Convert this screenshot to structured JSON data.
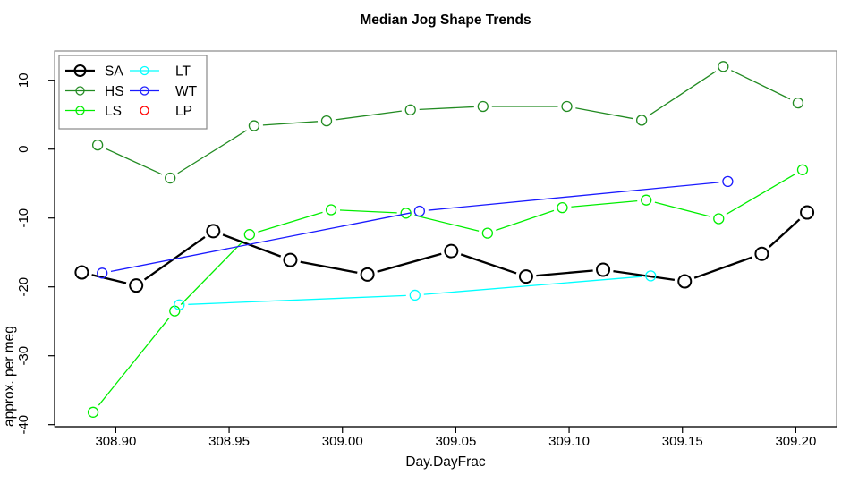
{
  "chart_data": {
    "type": "line",
    "title": "Median Jog Shape Trends",
    "xlabel": "Day.DayFrac",
    "ylabel": "approx. per meg",
    "xlim": [
      308.873,
      309.218
    ],
    "ylim": [
      -40.3,
      14.25
    ],
    "grid": false,
    "legend_position": "top-left",
    "x_ticks": [
      308.9,
      308.95,
      309.0,
      309.05,
      309.1,
      309.15,
      309.2
    ],
    "x_tick_labels": [
      "308.90",
      "308.95",
      "309.00",
      "309.05",
      "309.10",
      "309.15",
      "309.20"
    ],
    "y_ticks": [
      10,
      0,
      -10,
      -20,
      -30,
      -40
    ],
    "y_tick_labels": [
      "10",
      "0",
      "-10",
      "-20",
      "-30",
      "-40"
    ],
    "axis_color": "#000000",
    "box_color": "#888888",
    "series": [
      {
        "name": "SA",
        "color": "#000000",
        "line_width": 2.3,
        "marker": "open-circle",
        "marker_size": 7,
        "marker_stroke": 2,
        "points": [
          [
            308.885,
            -17.9
          ],
          [
            308.909,
            -19.8
          ],
          [
            308.943,
            -11.9
          ],
          [
            308.977,
            -16.1
          ],
          [
            309.011,
            -18.2
          ],
          [
            309.048,
            -14.8
          ],
          [
            309.081,
            -18.5
          ],
          [
            309.115,
            -17.5
          ],
          [
            309.151,
            -19.2
          ],
          [
            309.185,
            -15.2
          ],
          [
            309.205,
            -9.2
          ]
        ]
      },
      {
        "name": "HS",
        "color": "#228B22",
        "line_width": 1.3,
        "marker": "open-circle",
        "marker_size": 5.5,
        "marker_stroke": 1.3,
        "points": [
          [
            308.892,
            0.6
          ],
          [
            308.924,
            -4.2
          ],
          [
            308.961,
            3.4
          ],
          [
            308.993,
            4.1
          ],
          [
            309.03,
            5.7
          ],
          [
            309.062,
            6.2
          ],
          [
            309.099,
            6.2
          ],
          [
            309.132,
            4.2
          ],
          [
            309.168,
            12.0
          ],
          [
            309.201,
            6.7
          ]
        ]
      },
      {
        "name": "LS",
        "color": "#00EE00",
        "line_width": 1.3,
        "marker": "open-circle",
        "marker_size": 5.5,
        "marker_stroke": 1.3,
        "points": [
          [
            308.89,
            -38.2
          ],
          [
            308.926,
            -23.5
          ],
          [
            308.959,
            -12.4
          ],
          [
            308.995,
            -8.8
          ],
          [
            309.028,
            -9.3
          ],
          [
            309.064,
            -12.2
          ],
          [
            309.097,
            -8.5
          ],
          [
            309.134,
            -7.4
          ],
          [
            309.166,
            -10.1
          ],
          [
            309.203,
            -3.0
          ]
        ]
      },
      {
        "name": "LT",
        "color": "#00FFFF",
        "line_width": 1.3,
        "marker": "open-circle",
        "marker_size": 5.5,
        "marker_stroke": 1.3,
        "points": [
          [
            308.928,
            -22.6
          ],
          [
            309.032,
            -21.2
          ],
          [
            309.136,
            -18.4
          ]
        ]
      },
      {
        "name": "WT",
        "color": "#1A1AFF",
        "line_width": 1.3,
        "marker": "open-circle",
        "marker_size": 5.5,
        "marker_stroke": 1.3,
        "points": [
          [
            308.894,
            -18.0
          ],
          [
            309.034,
            -9.0
          ],
          [
            309.17,
            -4.7
          ]
        ]
      },
      {
        "name": "LP",
        "color": "#FF0000",
        "line_width": 1.3,
        "marker": "open-circle",
        "marker_size": 5.5,
        "marker_stroke": 1.3,
        "points": []
      }
    ],
    "legend": {
      "columns": [
        [
          "SA",
          "HS",
          "LS"
        ],
        [
          "LT",
          "WT",
          "LP"
        ]
      ],
      "marker_only": [
        "LP"
      ]
    }
  }
}
